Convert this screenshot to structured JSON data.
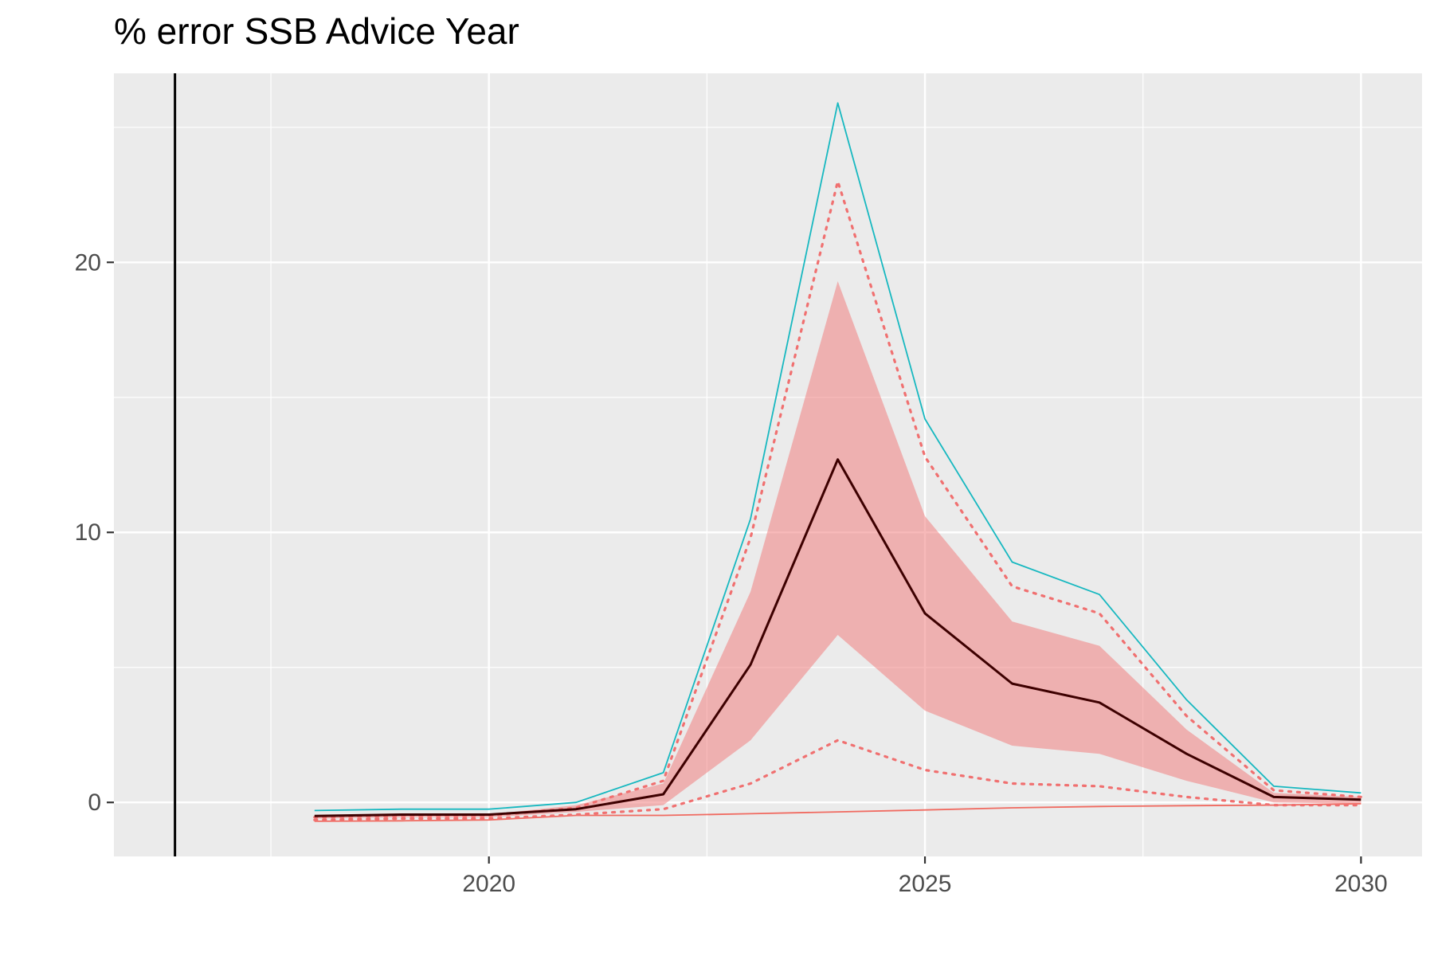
{
  "chart_data": {
    "type": "line",
    "title": "% error SSB Advice Year",
    "xlabel": "",
    "ylabel": "",
    "xlim": [
      2015.7,
      2030.7
    ],
    "ylim": [
      -2,
      27
    ],
    "x_ticks": [
      2020,
      2025,
      2030
    ],
    "x_tick_labels": [
      "2020",
      "2025",
      "2030"
    ],
    "y_ticks": [
      0,
      10,
      20
    ],
    "y_tick_labels": [
      "0",
      "10",
      "20"
    ],
    "grid": true,
    "legend": "none",
    "vline_x": 2016.4,
    "x": [
      2018,
      2019,
      2020,
      2021,
      2022,
      2023,
      2024,
      2025,
      2026,
      2027,
      2028,
      2029,
      2030
    ],
    "ribbon": {
      "color": "#f08080",
      "opacity": 0.55,
      "lower": [
        -0.6,
        -0.55,
        -0.55,
        -0.35,
        -0.1,
        2.3,
        6.2,
        3.4,
        2.1,
        1.8,
        0.8,
        0.0,
        -0.05
      ],
      "upper": [
        -0.5,
        -0.45,
        -0.45,
        -0.1,
        0.7,
        7.8,
        19.3,
        10.6,
        6.7,
        5.8,
        2.7,
        0.35,
        0.2
      ]
    },
    "series": [
      {
        "role": "median",
        "color": "#3d0000",
        "width": 3,
        "dash": "solid",
        "values": [
          -0.5,
          -0.45,
          -0.45,
          -0.25,
          0.3,
          5.1,
          12.7,
          7.0,
          4.4,
          3.7,
          1.8,
          0.2,
          0.1
        ]
      },
      {
        "role": "upper-dotted",
        "color": "#f07070",
        "width": 3.2,
        "dash": "dotted",
        "values": [
          -0.55,
          -0.5,
          -0.5,
          -0.2,
          0.8,
          9.8,
          23.0,
          12.8,
          8.0,
          7.0,
          3.2,
          0.45,
          0.2
        ]
      },
      {
        "role": "lower-dotted",
        "color": "#f07070",
        "width": 3.2,
        "dash": "dotted",
        "values": [
          -0.65,
          -0.6,
          -0.6,
          -0.45,
          -0.25,
          0.7,
          2.3,
          1.2,
          0.7,
          0.6,
          0.2,
          -0.1,
          -0.1
        ]
      },
      {
        "role": "max",
        "color": "#17b8c0",
        "width": 1.8,
        "dash": "solid",
        "values": [
          -0.3,
          -0.25,
          -0.25,
          0.0,
          1.1,
          10.5,
          25.9,
          14.2,
          8.9,
          7.7,
          3.8,
          0.6,
          0.35
        ]
      },
      {
        "role": "min",
        "color": "#f06a60",
        "width": 1.8,
        "dash": "solid",
        "values": [
          -0.7,
          -0.68,
          -0.65,
          -0.48,
          -0.48,
          -0.42,
          -0.35,
          -0.28,
          -0.2,
          -0.15,
          -0.12,
          -0.1,
          -0.05
        ]
      }
    ]
  }
}
